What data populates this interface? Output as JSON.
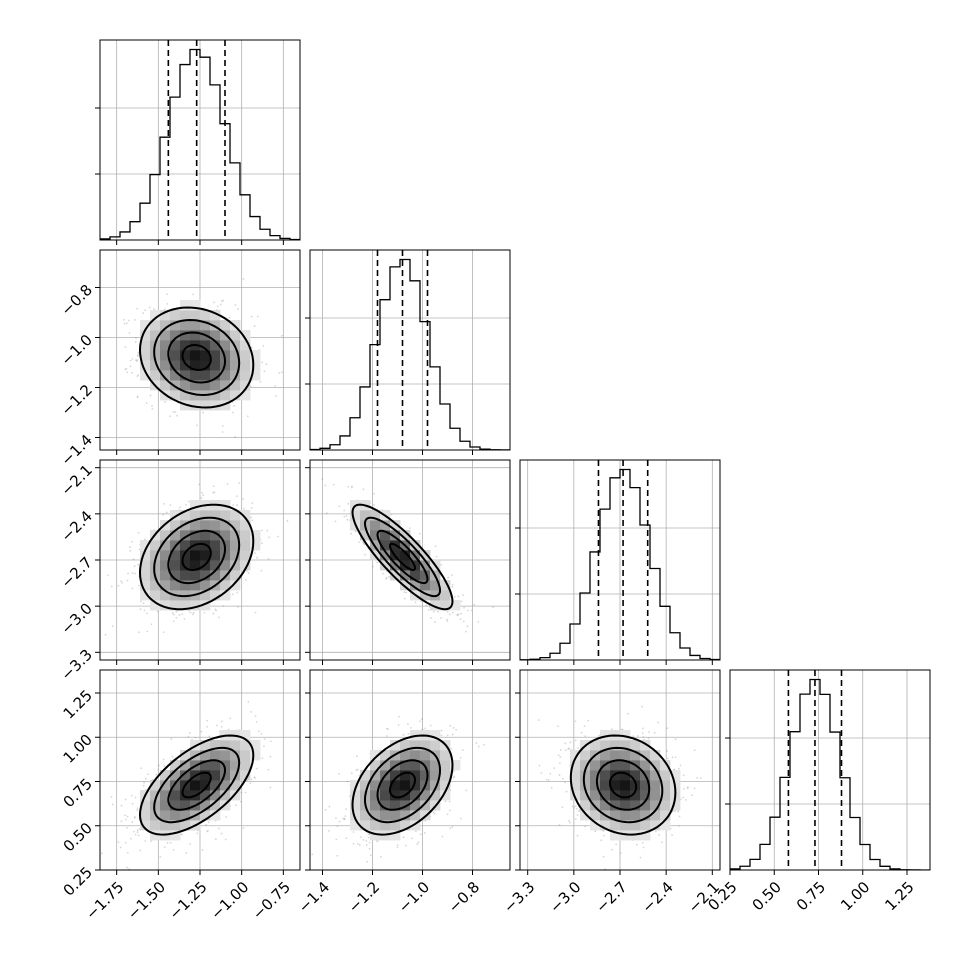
{
  "chart_data": {
    "type": "corner",
    "parameters": 4,
    "grid": true,
    "colors": {
      "ink": "#000000",
      "gridline": "#b0b0b0",
      "scatter": "#8c8c8c"
    },
    "ranges": [
      [
        -1.85,
        -0.65
      ],
      [
        -1.45,
        -0.65
      ],
      [
        -3.35,
        -2.05
      ],
      [
        0.25,
        1.38
      ]
    ],
    "ticks": [
      {
        "values": [
          -1.75,
          -1.5,
          -1.25,
          -1.0,
          -0.75
        ],
        "labels": [
          "−1.75",
          "−1.50",
          "−1.25",
          "−1.00",
          "−0.75"
        ]
      },
      {
        "values": [
          -1.4,
          -1.2,
          -1.0,
          -0.8
        ],
        "labels": [
          "−1.4",
          "−1.2",
          "−1.0",
          "−0.8"
        ]
      },
      {
        "values": [
          -3.3,
          -3.0,
          -2.7,
          -2.4,
          -2.1
        ],
        "labels": [
          "−3.3",
          "−3.0",
          "−2.7",
          "−2.4",
          "−2.1"
        ]
      },
      {
        "values": [
          0.25,
          0.5,
          0.75,
          1.0,
          1.25
        ],
        "labels": [
          "0.25",
          "0.50",
          "0.75",
          "1.00",
          "1.25"
        ]
      }
    ],
    "marginals": [
      {
        "mean": -1.27,
        "std": 0.17,
        "quantiles": [
          -1.44,
          -1.27,
          -1.1
        ]
      },
      {
        "mean": -1.08,
        "std": 0.1,
        "quantiles": [
          -1.18,
          -1.08,
          -0.98
        ]
      },
      {
        "mean": -2.68,
        "std": 0.17,
        "quantiles": [
          -2.84,
          -2.68,
          -2.52
        ]
      },
      {
        "mean": 0.73,
        "std": 0.14,
        "quantiles": [
          0.58,
          0.73,
          0.88
        ]
      }
    ],
    "correlations": [
      {
        "row": 1,
        "col": 0,
        "rho": -0.15
      },
      {
        "row": 2,
        "col": 0,
        "rho": 0.3
      },
      {
        "row": 2,
        "col": 1,
        "rho": -0.85
      },
      {
        "row": 3,
        "col": 0,
        "rho": 0.6
      },
      {
        "row": 3,
        "col": 1,
        "rho": 0.4
      },
      {
        "row": 3,
        "col": 2,
        "rho": -0.15
      }
    ],
    "contour_levels_sigma": [
      0.5,
      1.0,
      1.5,
      2.0
    ]
  }
}
